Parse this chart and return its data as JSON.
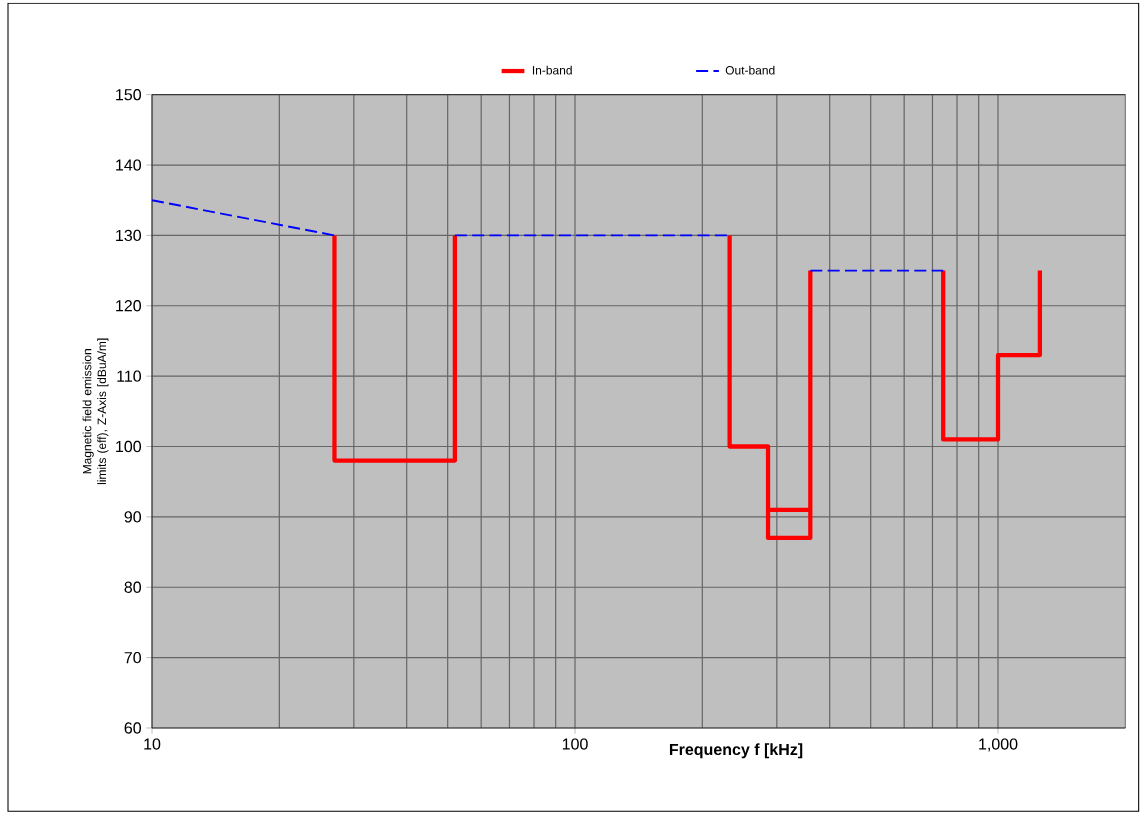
{
  "chart_data": {
    "type": "line",
    "xlabel": "Frequency f [kHz]",
    "ylabel": "Magnetic field emission limits (eff), Z-Axis [dBuA/m]",
    "log": "x",
    "xlim": [
      10,
      2000
    ],
    "xticks": [
      10,
      100,
      {
        "value": 1000,
        "label": "1,000"
      }
    ],
    "ylim": [
      60,
      150
    ],
    "yticks": [
      60,
      70,
      80,
      90,
      100,
      110,
      120,
      130,
      140,
      150
    ],
    "grid": true,
    "legend": "top",
    "series": [
      {
        "name": "In-band",
        "color": "#ff0000",
        "line_style": "solid",
        "x": [
          27,
          27,
          52,
          52
        ],
        "values": [
          130,
          98,
          98,
          130
        ]
      },
      {
        "color": "#ff0000",
        "line_style": "solid",
        "x": [
          232,
          232,
          286,
          286,
          360,
          360
        ],
        "values": [
          130,
          100,
          100,
          87,
          87,
          125
        ]
      },
      {
        "color": "#ff0000",
        "line_style": "solid",
        "x": [
          286,
          360
        ],
        "values": [
          91,
          91
        ]
      },
      {
        "color": "#ff0000",
        "line_style": "solid",
        "x": [
          742,
          742,
          1000,
          1000,
          1256,
          1256
        ],
        "values": [
          125,
          101,
          101,
          113,
          113,
          125
        ]
      },
      {
        "name": "Out-band",
        "color": "#0000ff",
        "line_style": "dashed",
        "x": [
          10,
          27
        ],
        "values": [
          135,
          130
        ]
      },
      {
        "color": "#0000ff",
        "line_style": "dashed",
        "x": [
          52,
          232
        ],
        "values": [
          130,
          130
        ]
      },
      {
        "color": "#0000ff",
        "line_style": "dashed",
        "x": [
          360,
          742
        ],
        "values": [
          125,
          125
        ]
      }
    ]
  }
}
